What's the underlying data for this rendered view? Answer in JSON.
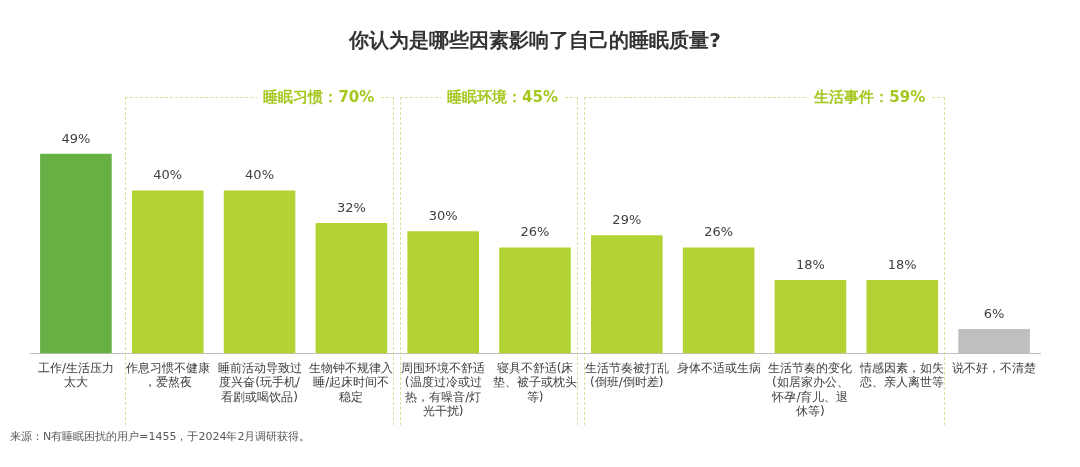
{
  "chart_data": {
    "type": "bar",
    "title": "你认为是哪些因素影响了自己的睡眠质量?",
    "categories": [
      "工作/生活压力太大",
      "作息习惯不健康，爱熬夜",
      "睡前活动导致过度兴奋(玩手机/看剧或喝饮品)",
      "生物钟不规律入睡/起床时间不稳定",
      "周围环境不舒适(温度过冷或过热，有噪音/灯光干扰)",
      "寝具不舒适(床垫、被子或枕头等)",
      "生活节奏被打乱(倒班/倒时差)",
      "身体不适或生病",
      "生活节奏的变化(如居家办公、怀孕/育儿、退休等)",
      "情感因素，如失恋、亲人离世等",
      "说不好，不清楚"
    ],
    "values": [
      49,
      40,
      40,
      32,
      30,
      26,
      29,
      26,
      18,
      18,
      6
    ],
    "colors": [
      "#67b044",
      "#b3d335",
      "#b3d335",
      "#b3d335",
      "#b3d335",
      "#b3d335",
      "#b3d335",
      "#b3d335",
      "#b3d335",
      "#b3d335",
      "#bfbfbf"
    ],
    "value_labels": [
      "49%",
      "40%",
      "40%",
      "32%",
      "30%",
      "26%",
      "29%",
      "26%",
      "18%",
      "18%",
      "6%"
    ],
    "annotations": [
      "睡眠习惯：70%",
      "睡眠环境：45%",
      "生活事件：59%",
      "来源：N有睡眠困扰的用户=1455，于2024年2月调研获得。"
    ],
    "legend": false,
    "grid": false
  }
}
